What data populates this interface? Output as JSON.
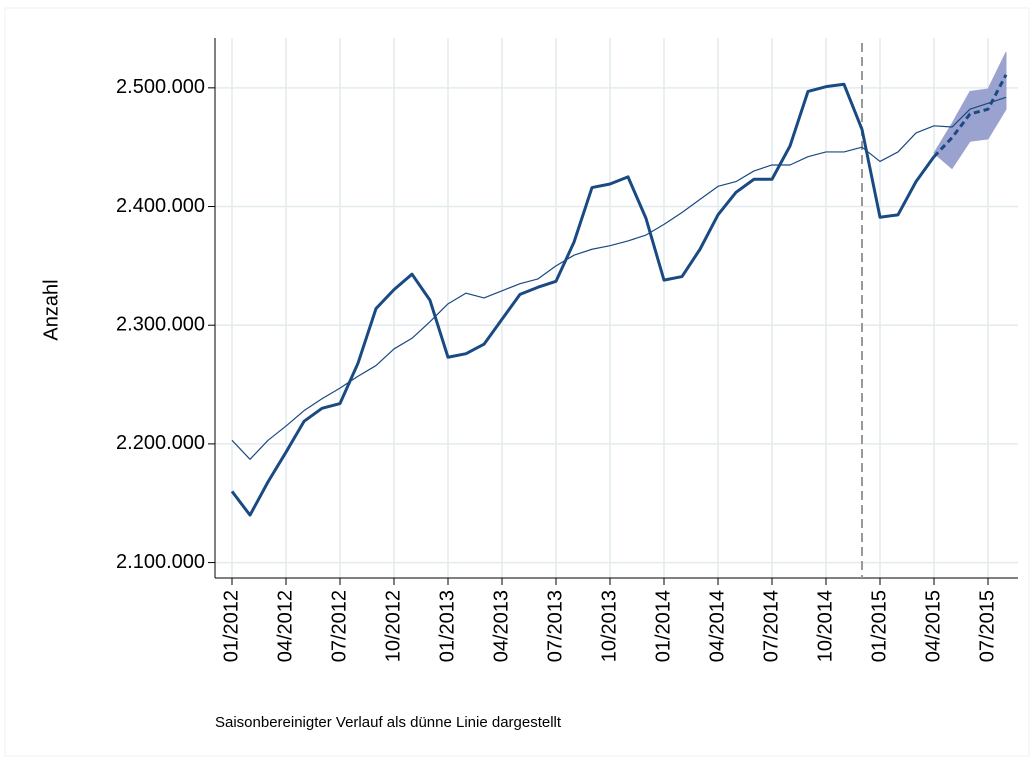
{
  "chart_data": {
    "type": "line",
    "y_label": "Anzahl",
    "footnote": "Saisonbereinigter Verlauf als dünne Linie dargestellt",
    "categories": [
      "01/2012",
      null,
      null,
      "04/2012",
      null,
      null,
      "07/2012",
      null,
      null,
      "10/2012",
      null,
      null,
      "01/2013",
      null,
      null,
      "04/2013",
      null,
      null,
      "07/2013",
      null,
      null,
      "10/2013",
      null,
      null,
      "01/2014",
      null,
      null,
      "04/2014",
      null,
      null,
      "07/2014",
      null,
      null,
      "10/2014",
      null,
      null,
      "01/2015",
      null,
      null,
      "04/2015",
      null,
      null,
      "07/2015",
      null
    ],
    "ylim": [
      2087000,
      2542000
    ],
    "yticks": [
      {
        "value": 2100000,
        "label": "2.100.000"
      },
      {
        "value": 2200000,
        "label": "2.200.000"
      },
      {
        "value": 2300000,
        "label": "2.300.000"
      },
      {
        "value": 2400000,
        "label": "2.400.000"
      },
      {
        "value": 2500000,
        "label": "2.500.000"
      }
    ],
    "grid": true,
    "vline_index": 35,
    "band": {
      "color": "#9aa2d0",
      "lower": [
        null,
        null,
        null,
        null,
        null,
        null,
        null,
        null,
        null,
        null,
        null,
        null,
        null,
        null,
        null,
        null,
        null,
        null,
        null,
        null,
        null,
        null,
        null,
        null,
        null,
        null,
        null,
        null,
        null,
        null,
        null,
        null,
        null,
        null,
        null,
        null,
        null,
        null,
        null,
        2445000,
        2432000,
        2455000,
        2457000,
        2482000
      ],
      "upper": [
        null,
        null,
        null,
        null,
        null,
        null,
        null,
        null,
        null,
        null,
        null,
        null,
        null,
        null,
        null,
        null,
        null,
        null,
        null,
        null,
        null,
        null,
        null,
        null,
        null,
        null,
        null,
        null,
        null,
        null,
        null,
        null,
        null,
        null,
        null,
        null,
        null,
        null,
        null,
        2445000,
        2470000,
        2497000,
        2499000,
        2530000
      ]
    },
    "series": [
      {
        "color": "#1a4a82",
        "width": 3,
        "dash": false,
        "values": [
          2160000,
          2140000,
          2168000,
          2193000,
          2219000,
          2230000,
          2234000,
          2268000,
          2314000,
          2330000,
          2343000,
          2321000,
          2273000,
          2276000,
          2284000,
          2305000,
          2326000,
          2332000,
          2337000,
          2370000,
          2416000,
          2419000,
          2425000,
          2390000,
          2338000,
          2341000,
          2364000,
          2393000,
          2412000,
          2423000,
          2423000,
          2451000,
          2497000,
          2501000,
          2503000,
          2465000,
          2391000,
          2393000,
          2421000,
          2442000,
          null,
          null,
          null,
          null
        ]
      },
      {
        "color": "#1a4a82",
        "width": 1.2,
        "dash": false,
        "values": [
          2203000,
          2187000,
          2203000,
          2215000,
          2228000,
          2238000,
          2247000,
          2257000,
          2266000,
          2280000,
          2289000,
          2303000,
          2318000,
          2327000,
          2323000,
          2329000,
          2335000,
          2339000,
          2350000,
          2359000,
          2364000,
          2367000,
          2371000,
          2376000,
          2385000,
          2395000,
          2406000,
          2417000,
          2421000,
          2430000,
          2435000,
          2435000,
          2442000,
          2446000,
          2446000,
          2450000,
          2438000,
          2446000,
          2462000,
          2468000,
          2467000,
          2482000,
          2487000,
          2492000
        ]
      },
      {
        "color": "#1a4a82",
        "width": 3,
        "dash": true,
        "values": [
          null,
          null,
          null,
          null,
          null,
          null,
          null,
          null,
          null,
          null,
          null,
          null,
          null,
          null,
          null,
          null,
          null,
          null,
          null,
          null,
          null,
          null,
          null,
          null,
          null,
          null,
          null,
          null,
          null,
          null,
          null,
          null,
          null,
          null,
          null,
          null,
          null,
          null,
          null,
          2442000,
          2458000,
          2478000,
          2482000,
          2511000
        ]
      }
    ]
  }
}
